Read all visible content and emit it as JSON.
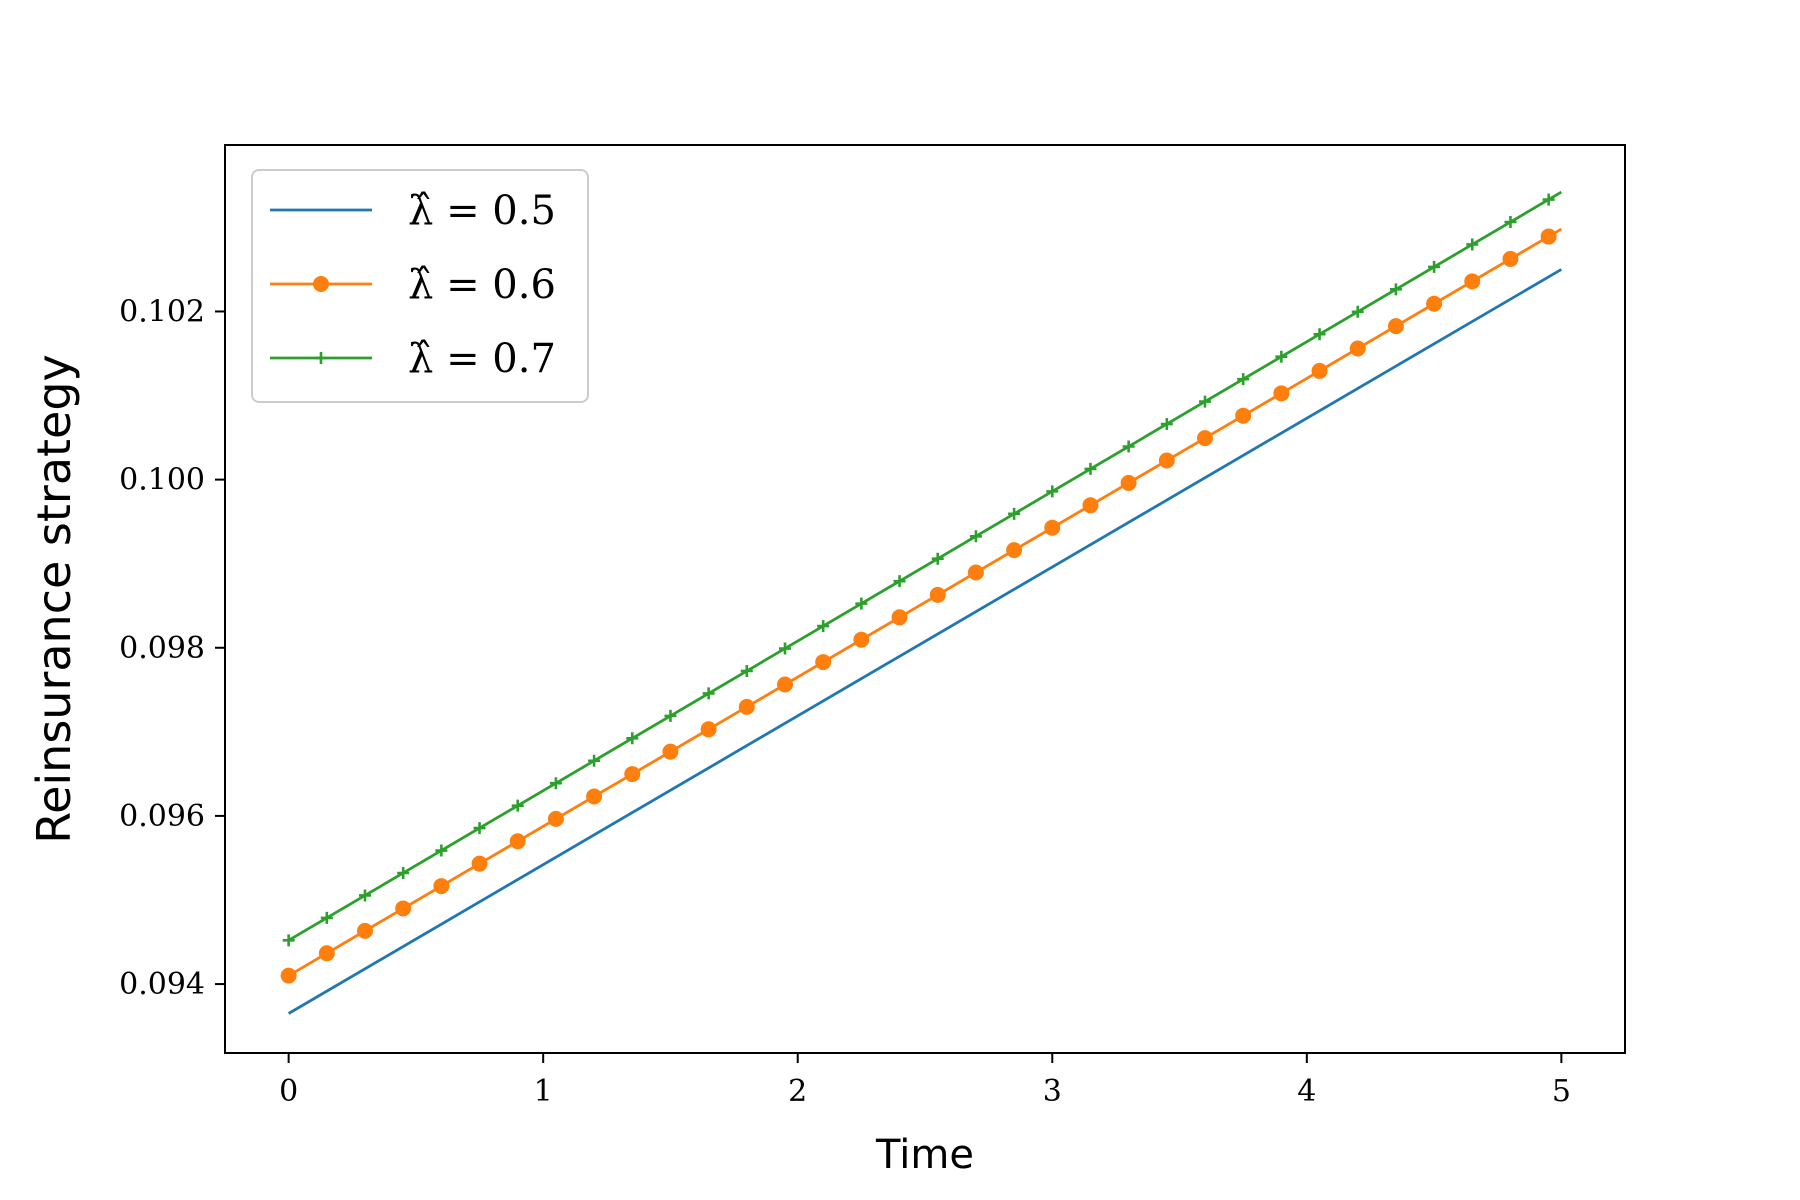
{
  "chart_data": {
    "type": "line",
    "title": "",
    "xlabel": "Time",
    "ylabel": "Reinsurance strategy",
    "xlim": [
      -0.25,
      5.25
    ],
    "ylim": [
      0.09318,
      0.10398
    ],
    "x_ticks": [
      0,
      1,
      2,
      3,
      4,
      5
    ],
    "x_tick_labels": [
      "0",
      "1",
      "2",
      "3",
      "4",
      "5"
    ],
    "y_ticks": [
      0.094,
      0.096,
      0.098,
      0.1,
      0.102
    ],
    "y_tick_labels": [
      "0.094",
      "0.096",
      "0.098",
      "0.100",
      "0.102"
    ],
    "grid": false,
    "legend_position": "top-left",
    "series": [
      {
        "name": "λ̂ = 0.5",
        "marker": "none",
        "color": "#1f77b4",
        "x_start": 0,
        "x_end": 5,
        "y_start": 0.09365,
        "y_end": 0.1025
      },
      {
        "name": "λ̂ = 0.6",
        "marker": "circle",
        "color": "#ff7f0e",
        "x_start": 0,
        "x_end": 5,
        "y_start": 0.0941,
        "y_end": 0.10298
      },
      {
        "name": "λ̂ = 0.7",
        "marker": "plus",
        "color": "#2ca02c",
        "x_start": 0,
        "x_end": 5,
        "y_start": 0.09452,
        "y_end": 0.10342
      }
    ],
    "marker_step": 0.15
  }
}
